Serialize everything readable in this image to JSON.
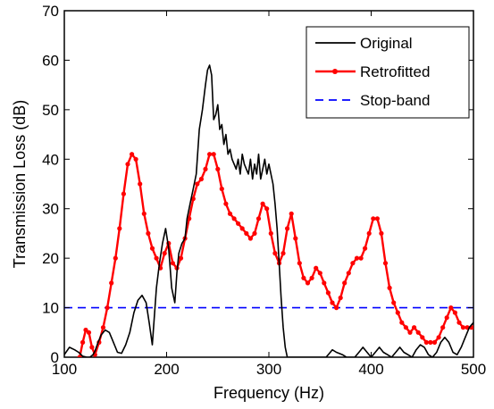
{
  "chart_data": {
    "type": "line",
    "xlabel": "Frequency (Hz)",
    "ylabel": "Transmission Loss (dB)",
    "xlim": [
      100,
      500
    ],
    "ylim": [
      0,
      70
    ],
    "x_ticks": [
      100,
      200,
      300,
      400,
      500
    ],
    "y_ticks": [
      0,
      10,
      20,
      30,
      40,
      50,
      60,
      70
    ],
    "x_tick_labels": [
      "100",
      "200",
      "300",
      "400",
      "500"
    ],
    "y_tick_labels": [
      "0",
      "10",
      "20",
      "30",
      "40",
      "50",
      "60",
      "70"
    ],
    "grid": false,
    "legend_position": "top-right",
    "series": [
      {
        "name": "Original",
        "color": "#000000",
        "style": "solid",
        "marker": "none",
        "x": [
          100,
          105,
          110,
          114,
          118,
          122,
          125,
          128,
          130,
          133,
          136,
          140,
          144,
          148,
          152,
          156,
          160,
          164,
          168,
          172,
          176,
          180,
          183,
          186,
          190,
          193,
          196,
          199,
          202,
          205,
          208,
          210,
          212,
          215,
          218,
          220,
          223,
          226,
          229,
          232,
          235,
          238,
          240,
          242,
          244,
          246,
          248,
          250,
          252,
          254,
          256,
          258,
          260,
          262,
          264,
          266,
          268,
          270,
          272,
          274,
          276,
          278,
          280,
          282,
          284,
          286,
          288,
          290,
          292,
          294,
          296,
          298,
          300,
          302,
          304,
          306,
          308,
          310,
          312,
          314,
          316,
          318,
          320,
          322,
          324,
          326,
          330,
          336,
          344,
          350,
          356,
          362,
          366,
          372,
          376,
          380,
          384,
          388,
          392,
          396,
          400,
          404,
          408,
          412,
          416,
          420,
          424,
          428,
          432,
          436,
          440,
          444,
          448,
          452,
          456,
          460,
          464,
          468,
          472,
          476,
          480,
          484,
          488,
          492,
          496,
          500
        ],
        "y": [
          0.5,
          2,
          1.5,
          1,
          0.2,
          0,
          0,
          0.5,
          1.2,
          3,
          4.5,
          5.5,
          5,
          3,
          1,
          0.8,
          2.5,
          5,
          9,
          11.5,
          12.5,
          11,
          7,
          2.5,
          14,
          19,
          23,
          26,
          22,
          14,
          11,
          17,
          21,
          23,
          24,
          28,
          31,
          34,
          37,
          46,
          50,
          55,
          58,
          59,
          57,
          48,
          49,
          51,
          46,
          47,
          43,
          45,
          41,
          42,
          40,
          39,
          38,
          40,
          37,
          41,
          39,
          38,
          37,
          40,
          36,
          39,
          37,
          41,
          36,
          38,
          40,
          37,
          39,
          37,
          35,
          31,
          26,
          19,
          12,
          6,
          2,
          0,
          0,
          0,
          0,
          0,
          0,
          0,
          0,
          0,
          0,
          1.5,
          1,
          0.5,
          0,
          0,
          0,
          1,
          2,
          1,
          0,
          1,
          2,
          1,
          0.5,
          0,
          1,
          2,
          1,
          0.5,
          0,
          1.5,
          2.5,
          2,
          0.5,
          0,
          1,
          3,
          4,
          3,
          1,
          0.5,
          2,
          4,
          6,
          7
        ]
      },
      {
        "name": "Retrofitted",
        "color": "#ff0000",
        "style": "solid",
        "marker": "dot",
        "x": [
          115,
          118,
          121,
          124,
          127,
          130,
          134,
          138,
          142,
          146,
          150,
          154,
          158,
          162,
          166,
          170,
          174,
          178,
          182,
          186,
          190,
          194,
          198,
          202,
          206,
          210,
          214,
          218,
          222,
          226,
          230,
          234,
          238,
          242,
          246,
          250,
          254,
          258,
          262,
          266,
          270,
          274,
          278,
          282,
          286,
          290,
          294,
          298,
          302,
          306,
          310,
          314,
          318,
          322,
          326,
          330,
          334,
          338,
          342,
          346,
          350,
          354,
          358,
          362,
          366,
          370,
          374,
          378,
          382,
          386,
          390,
          394,
          398,
          402,
          406,
          410,
          414,
          418,
          422,
          426,
          430,
          434,
          438,
          442,
          446,
          450,
          454,
          458,
          462,
          466,
          470,
          474,
          478,
          482,
          486,
          490,
          494,
          498,
          500
        ],
        "y": [
          0,
          3,
          5.5,
          5,
          2,
          0.5,
          3,
          6,
          10,
          15,
          20,
          26,
          33,
          39,
          41,
          40,
          35,
          29,
          25,
          22,
          20,
          18,
          21,
          23,
          19,
          18,
          20,
          24,
          28,
          32,
          35,
          36,
          38,
          41,
          41,
          38,
          34,
          31,
          29,
          28,
          27,
          26,
          25,
          24,
          25,
          28,
          31,
          30,
          25,
          21,
          19,
          21,
          26,
          29,
          24,
          19,
          16,
          15,
          16,
          18,
          17,
          15,
          13,
          11,
          10,
          12,
          15,
          17,
          19,
          20,
          20,
          22,
          25,
          28,
          28,
          25,
          19,
          14,
          11,
          9,
          7,
          6,
          5,
          6,
          5,
          4,
          3,
          3,
          3,
          4,
          6,
          8,
          10,
          9,
          7,
          6,
          6,
          6,
          6
        ]
      },
      {
        "name": "Stop-band",
        "color": "#0000ff",
        "style": "dashed",
        "marker": "none",
        "x": [
          100,
          500
        ],
        "y": [
          10,
          10
        ]
      }
    ]
  }
}
